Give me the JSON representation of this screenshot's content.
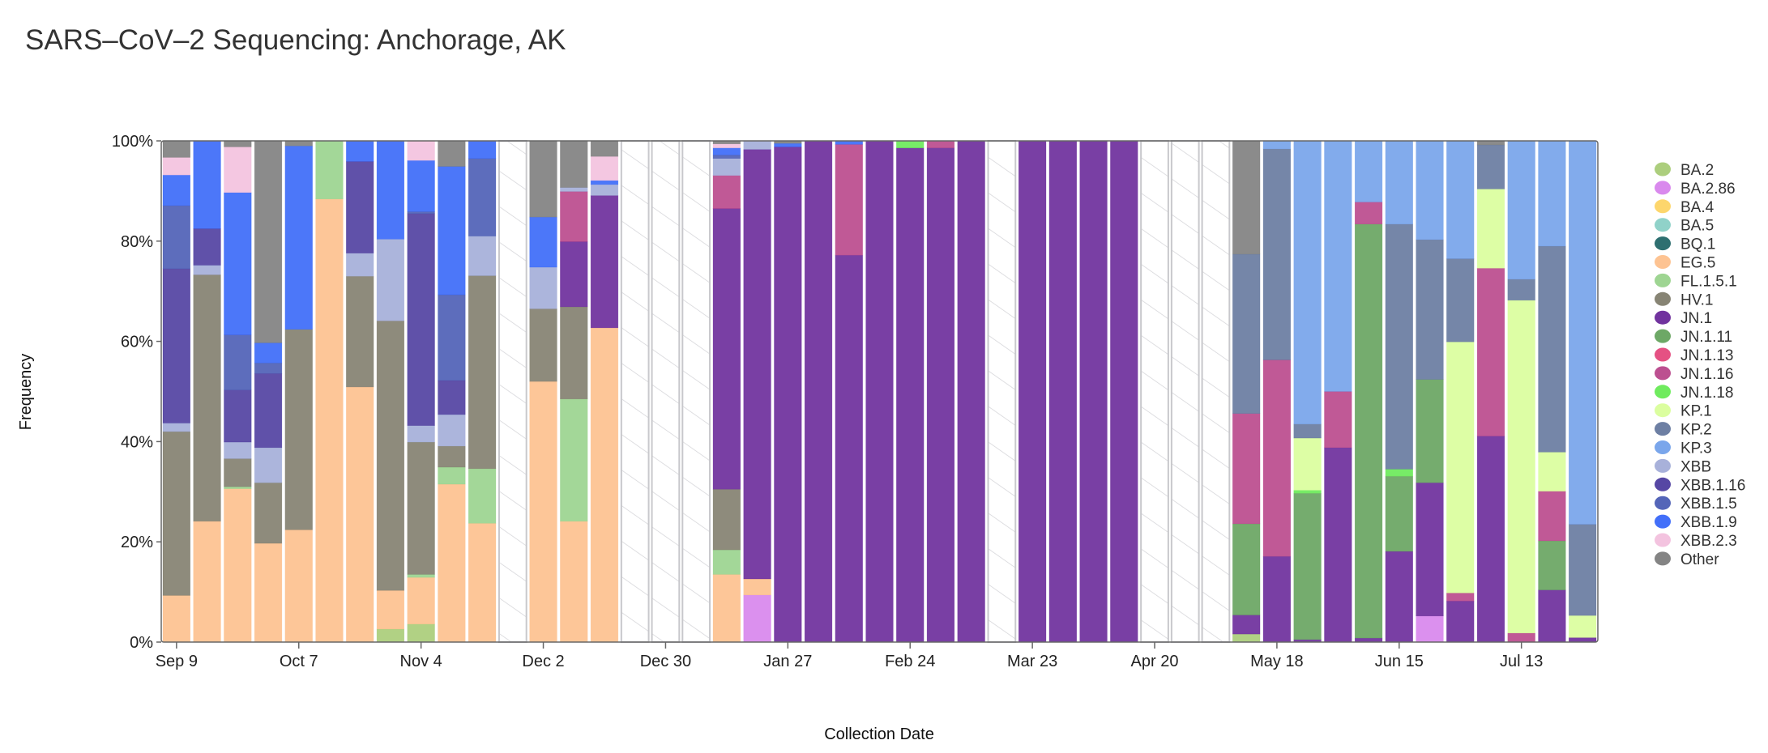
{
  "chart_data": {
    "type": "bar",
    "stacked": true,
    "title": "SARS–CoV–2 Sequencing: Anchorage, AK",
    "xlabel": "Collection Date",
    "ylabel": "Frequency",
    "ylim": [
      0,
      100
    ],
    "yticks": [
      "0%",
      "20%",
      "40%",
      "60%",
      "80%",
      "100%"
    ],
    "xticks": [
      {
        "week": 0,
        "label": "Sep 9"
      },
      {
        "week": 4,
        "label": "Oct 7"
      },
      {
        "week": 8,
        "label": "Nov 4"
      },
      {
        "week": 12,
        "label": "Dec 2"
      },
      {
        "week": 16,
        "label": "Dec 30"
      },
      {
        "week": 20,
        "label": "Jan 27"
      },
      {
        "week": 24,
        "label": "Feb 24"
      },
      {
        "week": 28,
        "label": "Mar 23"
      },
      {
        "week": 32,
        "label": "Apr 20"
      },
      {
        "week": 36,
        "label": "May 18"
      },
      {
        "week": 40,
        "label": "Jun 15"
      },
      {
        "week": 44,
        "label": "Jul 13"
      }
    ],
    "legend_position": "right",
    "variants": [
      {
        "name": "BA.2",
        "color": "#a3c96f"
      },
      {
        "name": "BA.2.86",
        "color": "#d57ceb"
      },
      {
        "name": "BA.4",
        "color": "#fdd25c"
      },
      {
        "name": "BA.5",
        "color": "#84cdc3"
      },
      {
        "name": "BQ.1",
        "color": "#175f61"
      },
      {
        "name": "EG.5",
        "color": "#fdbc86"
      },
      {
        "name": "FL.1.5.1",
        "color": "#93d086"
      },
      {
        "name": "HV.1",
        "color": "#7a7765"
      },
      {
        "name": "JN.1",
        "color": "#621d94"
      },
      {
        "name": "JN.1.11",
        "color": "#5d9e55"
      },
      {
        "name": "JN.1.13",
        "color": "#e23e76"
      },
      {
        "name": "JN.1.16",
        "color": "#b53c84"
      },
      {
        "name": "JN.1.18",
        "color": "#5fe94c"
      },
      {
        "name": "KP.1",
        "color": "#d7fe95"
      },
      {
        "name": "KP.2",
        "color": "#5d7199"
      },
      {
        "name": "KP.3",
        "color": "#6c9ce9"
      },
      {
        "name": "XBB",
        "color": "#9ea8d6"
      },
      {
        "name": "XBB.1.16",
        "color": "#44339a"
      },
      {
        "name": "XBB.1.5",
        "color": "#4154b0"
      },
      {
        "name": "XBB.1.9",
        "color": "#2d5ff8"
      },
      {
        "name": "XBB.2.3",
        "color": "#f2bddc"
      },
      {
        "name": "Other",
        "color": "#777777"
      }
    ],
    "weeks": [
      {
        "EG.5": 9.3,
        "HV.1": 32.7,
        "XBB": 1.7,
        "XBB.1.16": 30.8,
        "XBB.1.5": 12.6,
        "XBB.1.9": 6.1,
        "XBB.2.3": 3.5,
        "Other": 3.3
      },
      {
        "EG.5": 24.1,
        "HV.1": 49.2,
        "XBB": 1.9,
        "XBB.1.16": 7.3,
        "XBB.1.9": 17.5
      },
      {
        "EG.5": 30.6,
        "FL.1.5.1": 0.4,
        "HV.1": 5.6,
        "XBB": 3.3,
        "XBB.1.16": 10.4,
        "XBB.1.5": 11.0,
        "XBB.1.9": 28.4,
        "XBB.2.3": 9.1,
        "Other": 1.2
      },
      {
        "EG.5": 19.7,
        "HV.1": 12.1,
        "XBB": 7.0,
        "XBB.1.16": 14.8,
        "XBB.1.5": 2.1,
        "XBB.1.9": 4.0,
        "Other": 40.3
      },
      {
        "EG.5": 22.4,
        "HV.1": 40.0,
        "XBB.1.9": 36.6,
        "Other": 1.0
      },
      {
        "EG.5": 88.4,
        "FL.1.5.1": 11.6
      },
      {
        "EG.5": 50.9,
        "HV.1": 22.1,
        "XBB": 4.6,
        "XBB.1.16": 18.3,
        "XBB.1.9": 4.1
      },
      {
        "BA.2": 2.6,
        "EG.5": 7.7,
        "HV.1": 53.8,
        "XBB": 16.3,
        "XBB.1.9": 19.6
      },
      {
        "BA.2": 3.6,
        "EG.5": 9.3,
        "FL.1.5.1": 0.6,
        "HV.1": 26.4,
        "XBB": 3.3,
        "XBB.1.16": 42.3,
        "XBB.1.5": 0.4,
        "XBB.1.9": 10.2,
        "XBB.2.3": 3.9
      },
      {
        "EG.5": 31.5,
        "FL.1.5.1": 3.4,
        "HV.1": 4.2,
        "XBB": 6.3,
        "XBB.1.16": 6.8,
        "XBB.1.5": 17.1,
        "XBB.1.9": 25.6,
        "Other": 5.1
      },
      {
        "EG.5": 23.7,
        "FL.1.5.1": 10.9,
        "HV.1": 38.5,
        "XBB": 7.9,
        "XBB.1.5": 15.5,
        "XBB.1.9": 3.5
      },
      null,
      {
        "EG.5": 52.0,
        "HV.1": 14.5,
        "XBB": 8.3,
        "XBB.1.9": 10.0,
        "Other": 15.2
      },
      {
        "EG.5": 24.1,
        "FL.1.5.1": 24.4,
        "HV.1": 18.4,
        "JN.1": 13.0,
        "JN.1.16": 10.0,
        "XBB": 0.8,
        "Other": 9.3
      },
      {
        "EG.5": 62.7,
        "JN.1": 26.4,
        "XBB": 2.2,
        "XBB.1.9": 0.8,
        "XBB.2.3": 4.8,
        "Other": 3.1
      },
      null,
      null,
      null,
      {
        "EG.5": 13.5,
        "FL.1.5.1": 4.9,
        "HV.1": 12.1,
        "JN.1": 56.0,
        "JN.1.16": 6.6,
        "XBB": 3.4,
        "XBB.1.5": 0.7,
        "XBB.1.9": 1.4,
        "XBB.2.3": 0.8,
        "Other": 0.6
      },
      {
        "BA.2.86": 9.4,
        "EG.5": 3.2,
        "JN.1": 85.7,
        "XBB": 1.7
      },
      {
        "JN.1": 98.8,
        "XBB.1.9": 0.7,
        "Other": 0.5
      },
      {
        "JN.1": 100
      },
      {
        "JN.1": 77.2,
        "JN.1.16": 22.1,
        "XBB.1.9": 0.7
      },
      {
        "JN.1": 100
      },
      {
        "JN.1": 98.6,
        "JN.1.18": 1.4
      },
      {
        "JN.1": 98.6,
        "JN.1.16": 1.4
      },
      {
        "JN.1": 100
      },
      null,
      {
        "JN.1": 100
      },
      {
        "JN.1": 100
      },
      {
        "JN.1": 100
      },
      {
        "JN.1": 100
      },
      null,
      null,
      null,
      {
        "BA.2": 1.6,
        "JN.1": 3.8,
        "JN.1.11": 18.2,
        "JN.1.16": 22.0,
        "KP.2": 31.8,
        "Other": 22.6
      },
      {
        "JN.1": 17.1,
        "JN.1.16": 39.2,
        "KP.2": 42.1,
        "KP.3": 1.6
      },
      {
        "JN.1": 0.5,
        "JN.1.11": 29.2,
        "JN.1.18": 0.6,
        "KP.1": 10.4,
        "KP.2": 2.8,
        "KP.3": 56.5
      },
      {
        "JN.1": 38.8,
        "JN.1.16": 11.2,
        "KP.3": 50.0
      },
      {
        "JN.1": 0.8,
        "JN.1.11": 82.6,
        "JN.1.16": 4.4,
        "KP.3": 12.2
      },
      {
        "JN.1": 18.1,
        "JN.1.11": 15.0,
        "JN.1.18": 1.4,
        "KP.2": 48.9,
        "KP.3": 16.6
      },
      {
        "BA.2.86": 5.2,
        "JN.1": 26.6,
        "JN.1.11": 20.6,
        "KP.2": 27.9,
        "KP.3": 19.7
      },
      {
        "JN.1": 8.2,
        "JN.1.16": 1.6,
        "KP.1": 50.1,
        "KP.2": 16.6,
        "KP.3": 23.5
      },
      {
        "JN.1": 41.1,
        "JN.1.16": 33.5,
        "KP.1": 15.8,
        "KP.2": 8.8,
        "Other": 0.8
      },
      {
        "JN.1.16": 1.8,
        "KP.1": 66.4,
        "KP.2": 4.2,
        "KP.3": 27.6
      },
      {
        "JN.1": 10.4,
        "JN.1.11": 9.8,
        "JN.1.16": 9.9,
        "KP.1": 7.8,
        "KP.2": 41.1,
        "KP.3": 21.0
      },
      {
        "JN.1": 0.9,
        "KP.1": 4.4,
        "KP.2": 18.2,
        "KP.3": 76.5
      }
    ]
  }
}
